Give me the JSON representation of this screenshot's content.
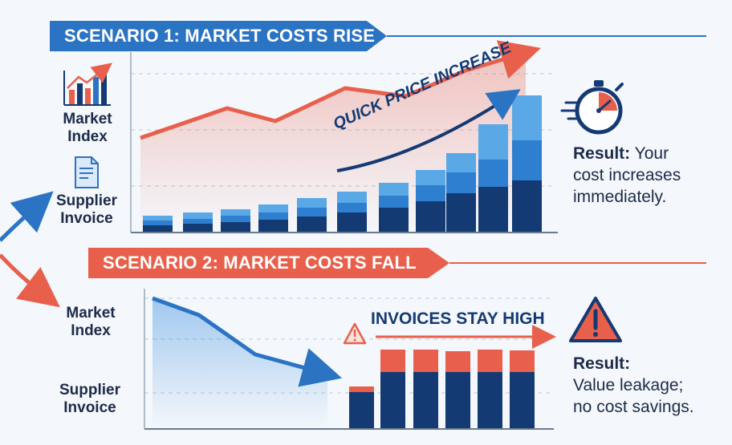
{
  "scenario1": {
    "title": "SCENARIO 1: MARKET COSTS RISE",
    "market_label_1": "Market",
    "market_label_2": "Index",
    "invoice_label_1": "Supplier",
    "invoice_label_2": "Invoice",
    "annotation": "QUICK PRICE INCREASE",
    "result_label": "Result:",
    "result_line1": " Your",
    "result_line2": "cost increases",
    "result_line3": "immediately."
  },
  "scenario2": {
    "title": "SCENARIO 2: MARKET COSTS FALL",
    "market_label_1": "Market",
    "market_label_2": "Index",
    "invoice_label_1": "Supplier",
    "invoice_label_2": "Invoice",
    "annotation": "INVOICES STAY HIGH",
    "result_label": "Result:",
    "result_line1": "Value leakage;",
    "result_line2": "no cost savings."
  },
  "colors": {
    "blue": "#2b74c4",
    "navy": "#143a73",
    "mid_blue": "#2f7fd0",
    "light_blue": "#5aa8e6",
    "red": "#e8604c"
  },
  "icons": [
    "bar-chart-icon",
    "invoice-document-icon",
    "stopwatch-icon",
    "warning-icon"
  ]
}
